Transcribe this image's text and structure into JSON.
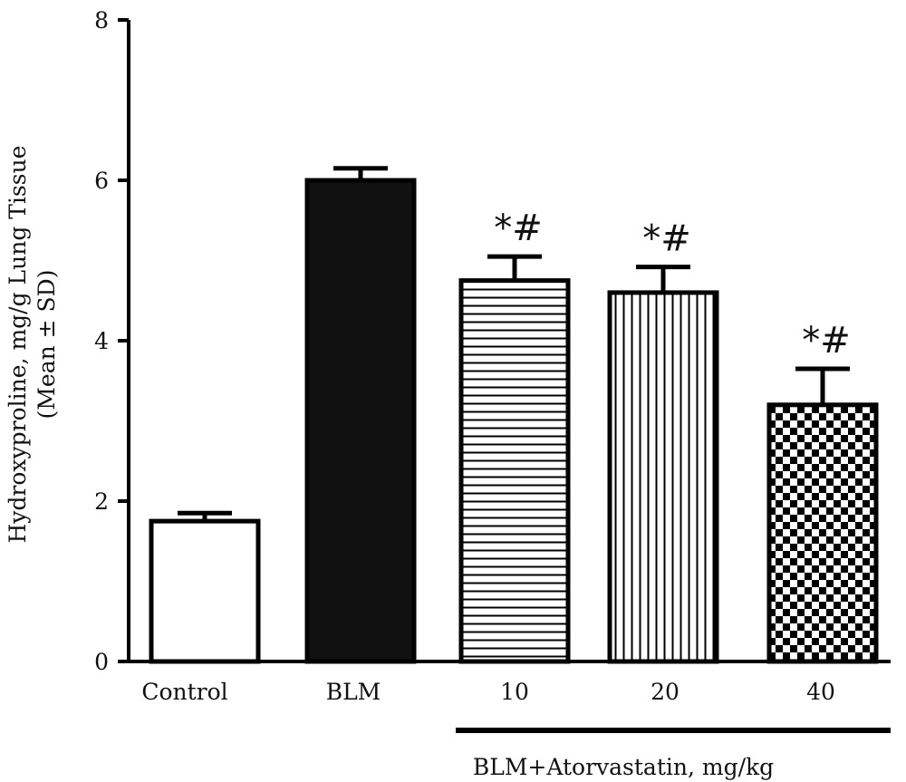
{
  "chart_data": {
    "type": "bar",
    "title": "",
    "ylabel_line1": "Hydroxyproline, mg/g Lung Tissue",
    "ylabel_line2": "(Mean ± SD)",
    "group_label": "BLM+Atorvastatin, mg/kg",
    "categories": [
      "Control",
      "BLM",
      "10",
      "20",
      "40"
    ],
    "values": [
      1.75,
      6.0,
      4.75,
      4.6,
      3.2
    ],
    "error_sd": [
      0.1,
      0.15,
      0.3,
      0.32,
      0.45
    ],
    "significance": [
      "",
      "",
      "*#",
      "*#",
      "*#"
    ],
    "fill_patterns": [
      "white",
      "solid-black",
      "horizontal-lines",
      "vertical-lines",
      "checkerboard"
    ],
    "ylim": [
      0,
      8
    ],
    "yticks": [
      "0",
      "2",
      "4",
      "6",
      "8"
    ],
    "grid": false,
    "colors": {
      "stroke": "#000000",
      "fill_dark": "#111111",
      "background": "#ffffff"
    }
  }
}
